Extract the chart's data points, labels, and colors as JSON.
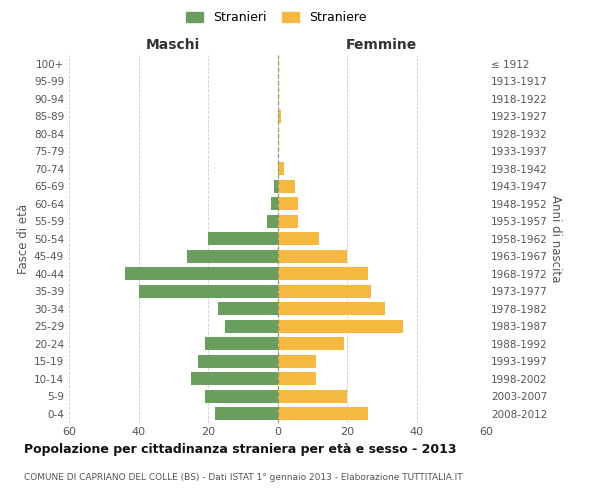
{
  "age_groups_bottom_to_top": [
    "0-4",
    "5-9",
    "10-14",
    "15-19",
    "20-24",
    "25-29",
    "30-34",
    "35-39",
    "40-44",
    "45-49",
    "50-54",
    "55-59",
    "60-64",
    "65-69",
    "70-74",
    "75-79",
    "80-84",
    "85-89",
    "90-94",
    "95-99",
    "100+"
  ],
  "birth_years_bottom_to_top": [
    "2008-2012",
    "2003-2007",
    "1998-2002",
    "1993-1997",
    "1988-1992",
    "1983-1987",
    "1978-1982",
    "1973-1977",
    "1968-1972",
    "1963-1967",
    "1958-1962",
    "1953-1957",
    "1948-1952",
    "1943-1947",
    "1938-1942",
    "1933-1937",
    "1928-1932",
    "1923-1927",
    "1918-1922",
    "1913-1917",
    "≤ 1912"
  ],
  "maschi_bottom_to_top": [
    18,
    21,
    25,
    23,
    21,
    15,
    17,
    40,
    44,
    26,
    20,
    3,
    2,
    1,
    0,
    0,
    0,
    0,
    0,
    0,
    0
  ],
  "femmine_bottom_to_top": [
    26,
    20,
    11,
    11,
    19,
    36,
    31,
    27,
    26,
    20,
    12,
    6,
    6,
    5,
    2,
    0,
    0,
    1,
    0,
    0,
    0
  ],
  "maschi_color": "#6a9e5f",
  "femmine_color": "#f5b942",
  "background_color": "#ffffff",
  "grid_color": "#cccccc",
  "title": "Popolazione per cittadinanza straniera per età e sesso - 2013",
  "subtitle": "COMUNE DI CAPRIANO DEL COLLE (BS) - Dati ISTAT 1° gennaio 2013 - Elaborazione TUTTITALIA.IT",
  "xlabel_left": "Maschi",
  "xlabel_right": "Femmine",
  "ylabel_left": "Fasce di età",
  "ylabel_right": "Anni di nascita",
  "legend_stranieri": "Stranieri",
  "legend_straniere": "Straniere",
  "xlim": 60
}
